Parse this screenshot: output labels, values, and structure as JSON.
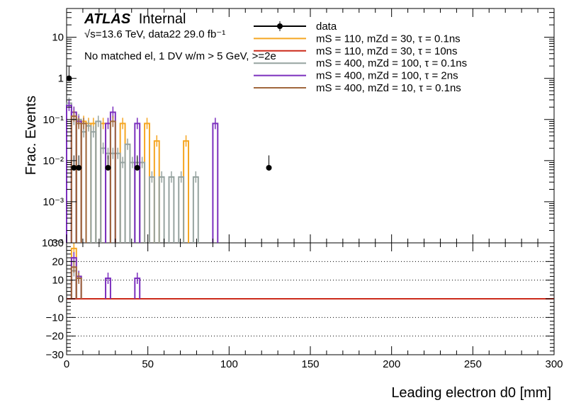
{
  "chart_data": [
    {
      "panel": "main",
      "type": "step-histogram",
      "ylabel": "Frac. Events",
      "yscale": "log",
      "ylim": [
        0.0001,
        50
      ],
      "xlim": [
        0,
        300
      ],
      "y_tick_labels": [
        "10",
        "1",
        "10⁻¹",
        "10⁻²",
        "10⁻³",
        "10⁻⁴"
      ],
      "title_bold": "ATLAS",
      "title_suffix": "Internal",
      "subtitle": "√s=13.6 TeV, data22 29.0 fb⁻¹",
      "selection": "No matched el, 1 DV w/m > 5 GeV, >=2e",
      "legend_position": "top-right",
      "data_points": [
        {
          "x": 1.5,
          "y": 1.0,
          "err_low": 0.0,
          "err_high": 1.0
        },
        {
          "x": 4.5,
          "y": 0.0067,
          "err_low": 0.0,
          "err_high": 0.0067
        },
        {
          "x": 7.5,
          "y": 0.0067,
          "err_low": 0.0,
          "err_high": 0.0067
        },
        {
          "x": 25.5,
          "y": 0.0067,
          "err_low": 0.0,
          "err_high": 0.0067
        },
        {
          "x": 43.5,
          "y": 0.0067,
          "err_low": 0.0,
          "err_high": 0.0067
        },
        {
          "x": 124.5,
          "y": 0.0067,
          "err_low": 0.0,
          "err_high": 0.0067
        }
      ],
      "series": [
        {
          "name": "mS = 110, mZd = 30, τ = 0.1ns",
          "color": "#f5a623",
          "bins": [
            [
              3,
              6,
              0.15
            ],
            [
              6,
              9,
              0.09
            ],
            [
              9,
              12,
              0.09
            ],
            [
              12,
              15,
              0.08
            ],
            [
              15,
              18,
              0.08
            ],
            [
              21,
              24,
              0.08
            ],
            [
              33,
              36,
              0.08
            ],
            [
              48,
              51,
              0.08
            ],
            [
              54,
              57,
              0.03
            ],
            [
              72,
              75,
              0.03
            ]
          ]
        },
        {
          "name": "mS = 110, mZd = 30, τ = 10ns",
          "color": "#cc2a1a",
          "bins": []
        },
        {
          "name": "mS = 400, mZd = 100, τ = 0.1ns",
          "color": "#96a3a0",
          "bins": [
            [
              0,
              3,
              0.25
            ],
            [
              3,
              6,
              0.1
            ],
            [
              6,
              9,
              0.1
            ],
            [
              9,
              12,
              0.05
            ],
            [
              12,
              15,
              0.07
            ],
            [
              15,
              18,
              0.05
            ],
            [
              18,
              21,
              0.09
            ],
            [
              21,
              24,
              0.02
            ],
            [
              24,
              27,
              0.015
            ],
            [
              27,
              30,
              0.015
            ],
            [
              30,
              33,
              0.015
            ],
            [
              33,
              36,
              0.009
            ],
            [
              36,
              39,
              0.025
            ],
            [
              39,
              42,
              0.009
            ],
            [
              42,
              45,
              0.009
            ],
            [
              45,
              48,
              0.009
            ],
            [
              51,
              54,
              0.004
            ],
            [
              57,
              60,
              0.004
            ],
            [
              63,
              66,
              0.004
            ],
            [
              69,
              72,
              0.004
            ],
            [
              78,
              81,
              0.004
            ]
          ]
        },
        {
          "name": "mS = 400, mZd = 100, τ = 2ns",
          "color": "#7b2fbe",
          "bins": [
            [
              0,
              3,
              0.22
            ],
            [
              3,
              6,
              0.15
            ],
            [
              6,
              9,
              0.09
            ],
            [
              24,
              27,
              0.08
            ],
            [
              27,
              30,
              0.15
            ],
            [
              42,
              45,
              0.08
            ],
            [
              90,
              93,
              0.08
            ]
          ]
        },
        {
          "name": "mS = 400, mZd = 10, τ = 0.1ns",
          "color": "#a0673d",
          "bins": [
            [
              3,
              6,
              0.12
            ],
            [
              6,
              9,
              0.08
            ],
            [
              9,
              12,
              0.08
            ],
            [
              27,
              30,
              0.09
            ]
          ]
        }
      ],
      "legend": [
        {
          "label": "data",
          "color": "#000000",
          "kind": "marker"
        },
        {
          "label": "mS = 110, mZd = 30, τ = 0.1ns",
          "color": "#f5a623",
          "kind": "line"
        },
        {
          "label": "mS = 110, mZd = 30, τ = 10ns",
          "color": "#cc2a1a",
          "kind": "line"
        },
        {
          "label": "mS = 400, mZd = 100, τ = 0.1ns",
          "color": "#96a3a0",
          "kind": "line"
        },
        {
          "label": "mS = 400, mZd = 100, τ = 2ns",
          "color": "#7b2fbe",
          "kind": "line"
        },
        {
          "label": "mS = 400, mZd = 10, τ = 0.1ns",
          "color": "#a0673d",
          "kind": "line"
        }
      ]
    },
    {
      "panel": "ratio",
      "type": "step-histogram",
      "ylim": [
        -30,
        30
      ],
      "xlim": [
        0,
        300
      ],
      "xlabel": "Leading electron d0 [mm]",
      "x_ticks": [
        0,
        50,
        100,
        150,
        200,
        250,
        300
      ],
      "y_ticks": [
        -30,
        -20,
        -10,
        0,
        10,
        20,
        30
      ],
      "grid": "horizontal-dotted",
      "reference_line": {
        "y": 0,
        "color": "#cc2a1a"
      },
      "series": [
        {
          "name": "mS = 110, mZd = 30, τ = 0.1ns",
          "color": "#f5a623",
          "bins": [
            [
              3,
              6,
              27
            ],
            [
              6,
              9,
              12
            ]
          ]
        },
        {
          "name": "mS = 400, mZd = 100, τ = 0.1ns",
          "color": "#96a3a0",
          "bins": [
            [
              3,
              6,
              15
            ],
            [
              6,
              9,
              12
            ]
          ]
        },
        {
          "name": "mS = 400, mZd = 100, τ = 2ns",
          "color": "#7b2fbe",
          "bins": [
            [
              3,
              6,
              22
            ],
            [
              6,
              9,
              12
            ],
            [
              24,
              27,
              11
            ],
            [
              42,
              45,
              11
            ]
          ]
        },
        {
          "name": "mS = 400, mZd = 10, τ = 0.1ns",
          "color": "#a0673d",
          "bins": [
            [
              3,
              6,
              17
            ],
            [
              6,
              9,
              11
            ]
          ]
        }
      ]
    }
  ]
}
